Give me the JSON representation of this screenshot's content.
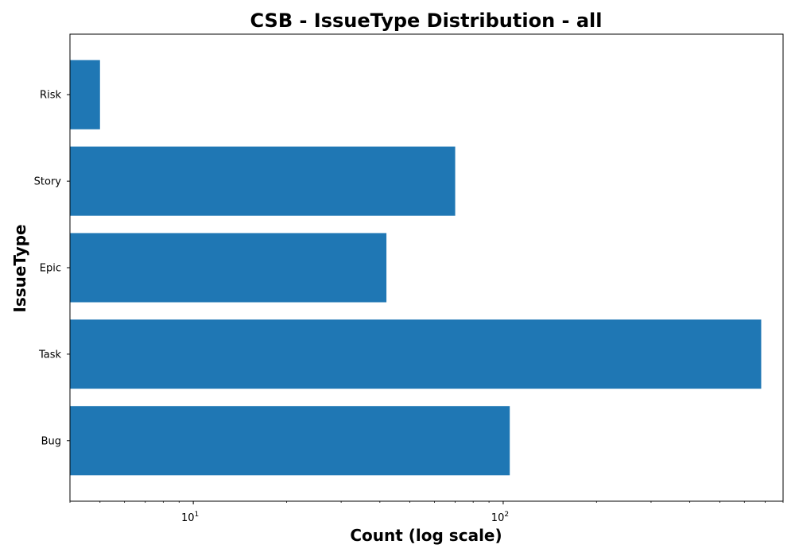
{
  "chart_data": {
    "type": "bar",
    "orientation": "horizontal",
    "title": "CSB - IssueType Distribution - all",
    "xlabel": "Count (log scale)",
    "ylabel": "IssueType",
    "x_scale": "log",
    "xlim": [
      4,
      800
    ],
    "x_major_ticks": [
      10,
      100
    ],
    "x_tick_labels": {
      "10": {
        "base": "10",
        "exp": "1"
      },
      "100": {
        "base": "10",
        "exp": "2"
      }
    },
    "categories": [
      "Bug",
      "Task",
      "Epic",
      "Story",
      "Risk"
    ],
    "values": [
      105,
      680,
      42,
      70,
      5
    ],
    "bar_color": "#1f77b4",
    "grid": false,
    "legend": false
  }
}
